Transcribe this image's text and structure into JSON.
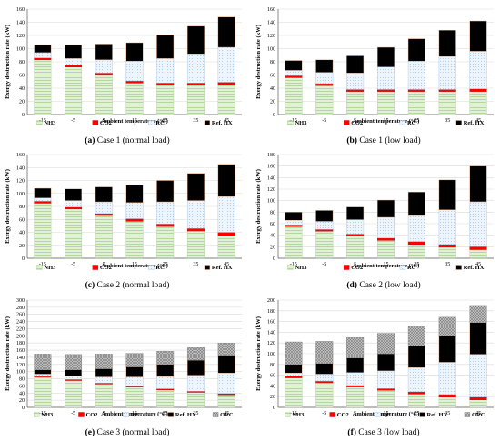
{
  "chart_data": [
    {
      "type": "bar",
      "caption": {
        "letter": "(a)",
        "text": "Case 1 (normal load)"
      },
      "xlabel": "Ambient temperature (°C)",
      "ylabel": "Exergy destruction rate (kW)",
      "ylim": [
        0,
        160
      ],
      "yticks": [
        0,
        20,
        40,
        60,
        80,
        100,
        120,
        140,
        160
      ],
      "categories": [
        "-15",
        "-5",
        "5",
        "15",
        "25",
        "35",
        "45"
      ],
      "stacked": true,
      "legend_position": "bottom",
      "series": [
        {
          "name": "NH3",
          "values": [
            83,
            72,
            60,
            48,
            45,
            45,
            45
          ]
        },
        {
          "name": "CO2",
          "values": [
            3,
            3,
            3,
            3,
            3,
            3,
            4
          ]
        },
        {
          "name": "RC",
          "values": [
            8,
            10,
            20,
            30,
            37,
            44,
            53
          ]
        },
        {
          "name": "Ref. HX",
          "values": [
            12,
            21,
            24,
            28,
            36,
            42,
            46
          ]
        }
      ]
    },
    {
      "type": "bar",
      "caption": {
        "letter": "(b)",
        "text": "Case 1 (low load)"
      },
      "xlabel": "Ambient temperature (°C)",
      "ylabel": "Exergy destruction rate (kW)",
      "ylim": [
        0,
        160
      ],
      "yticks": [
        0,
        20,
        40,
        60,
        80,
        100,
        120,
        140,
        160
      ],
      "categories": [
        "-15",
        "-5",
        "5",
        "15",
        "25",
        "35",
        "45"
      ],
      "stacked": true,
      "legend_position": "bottom",
      "series": [
        {
          "name": "NH3",
          "values": [
            56,
            44,
            35,
            35,
            35,
            35,
            35
          ]
        },
        {
          "name": "CO2",
          "values": [
            3,
            3,
            3,
            3,
            3,
            3,
            4
          ]
        },
        {
          "name": "RC",
          "values": [
            8,
            17,
            25,
            34,
            43,
            50,
            57
          ]
        },
        {
          "name": "Ref. HX",
          "values": [
            15,
            19,
            26,
            30,
            34,
            40,
            46
          ]
        }
      ]
    },
    {
      "type": "bar",
      "caption": {
        "letter": "(c)",
        "text": "Case 2 (normal load)"
      },
      "xlabel": "Ambient temperature (°C)",
      "ylabel": "Exergy destruction rate (kW)",
      "ylim": [
        0,
        160
      ],
      "yticks": [
        0,
        20,
        40,
        60,
        80,
        100,
        120,
        140,
        160
      ],
      "categories": [
        "-15",
        "-5",
        "5",
        "15",
        "25",
        "35",
        "45"
      ],
      "stacked": true,
      "legend_position": "bottom",
      "series": [
        {
          "name": "NH3",
          "values": [
            85,
            76,
            66,
            57,
            49,
            42,
            35
          ]
        },
        {
          "name": "CO2",
          "values": [
            3,
            3,
            3,
            4,
            4,
            4,
            5
          ]
        },
        {
          "name": "RC",
          "values": [
            5,
            10,
            18,
            25,
            34,
            43,
            55
          ]
        },
        {
          "name": "Ref. HX",
          "values": [
            15,
            18,
            23,
            27,
            33,
            42,
            50
          ]
        }
      ]
    },
    {
      "type": "bar",
      "caption": {
        "letter": "(d)",
        "text": "Case 2 (low load)"
      },
      "xlabel": "Ambient temperature (°C)",
      "ylabel": "Exergy destruction rate (kW)",
      "ylim": [
        0,
        180
      ],
      "yticks": [
        0,
        20,
        40,
        60,
        80,
        100,
        120,
        140,
        160,
        180
      ],
      "categories": [
        "-15",
        "-5",
        "5",
        "15",
        "25",
        "35",
        "45"
      ],
      "stacked": true,
      "legend_position": "bottom",
      "series": [
        {
          "name": "NH3",
          "values": [
            55,
            47,
            39,
            31,
            24,
            19,
            15
          ]
        },
        {
          "name": "CO2",
          "values": [
            3,
            3,
            3,
            4,
            5,
            5,
            5
          ]
        },
        {
          "name": "RC",
          "values": [
            8,
            14,
            25,
            36,
            45,
            60,
            78
          ]
        },
        {
          "name": "Ref. HX",
          "values": [
            14,
            19,
            22,
            30,
            41,
            52,
            62
          ]
        }
      ]
    },
    {
      "type": "bar",
      "caption": {
        "letter": "(e)",
        "text": "Case 3 (normal load)"
      },
      "xlabel": "Ambient temperature (°C)",
      "ylabel": "Exergy destruction rate (kW)",
      "ylim": [
        0,
        300
      ],
      "yticks": [
        0,
        20,
        40,
        60,
        80,
        100,
        120,
        140,
        160,
        180,
        200,
        220,
        240,
        260,
        280,
        300
      ],
      "categories": [
        "-15",
        "-5",
        "5",
        "15",
        "25",
        "35",
        "45"
      ],
      "stacked": true,
      "legend_position": "bottom",
      "series": [
        {
          "name": "NH3",
          "values": [
            85,
            75,
            65,
            57,
            49,
            42,
            35
          ]
        },
        {
          "name": "CO2",
          "values": [
            3,
            3,
            3,
            3,
            3,
            3,
            4
          ]
        },
        {
          "name": "RC",
          "values": [
            5,
            10,
            17,
            25,
            34,
            45,
            57
          ]
        },
        {
          "name": "Ref. HX",
          "values": [
            12,
            17,
            23,
            28,
            34,
            42,
            50
          ]
        },
        {
          "name": "ORC",
          "values": [
            44,
            43,
            41,
            38,
            37,
            35,
            34
          ]
        }
      ]
    },
    {
      "type": "bar",
      "caption": {
        "letter": "(f)",
        "text": "Case 3 (low load)"
      },
      "xlabel": "Ambient temperature (°C)",
      "ylabel": "Exergy destruction rate (kW)",
      "ylim": [
        0,
        200
      ],
      "yticks": [
        0,
        20,
        40,
        60,
        80,
        100,
        120,
        140,
        160,
        180,
        200
      ],
      "categories": [
        "-15",
        "-5",
        "5",
        "15",
        "25",
        "35",
        "45"
      ],
      "stacked": true,
      "legend_position": "bottom",
      "series": [
        {
          "name": "NH3",
          "values": [
            55,
            46,
            38,
            32,
            25,
            19,
            14
          ]
        },
        {
          "name": "CO2",
          "values": [
            3,
            3,
            3,
            3,
            4,
            5,
            5
          ]
        },
        {
          "name": "RC",
          "values": [
            6,
            13,
            24,
            33,
            45,
            60,
            80
          ]
        },
        {
          "name": "Ref. HX",
          "values": [
            16,
            20,
            27,
            32,
            40,
            49,
            59
          ]
        },
        {
          "name": "ORC",
          "values": [
            42,
            41,
            38,
            38,
            38,
            35,
            32
          ]
        }
      ]
    }
  ],
  "series_colors": {
    "NH3": "#c6e0b4",
    "CO2": "#ff0000",
    "RC": "#ddebf7",
    "Ref. HX": "#f4b183",
    "ORC": "#a6a6a6"
  },
  "series_patterns": {
    "NH3": "horizontal-lines",
    "CO2": "solid",
    "RC": "dots",
    "Ref. HX": "diagonal-stripes",
    "ORC": "crosshatch"
  }
}
